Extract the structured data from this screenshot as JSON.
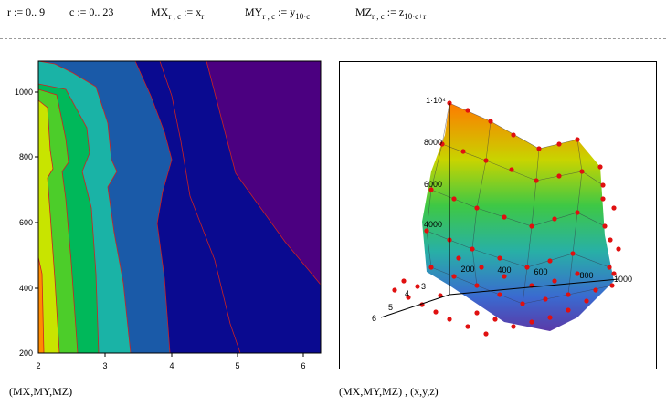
{
  "definitions": {
    "r_def": "r := 0.. 9",
    "c_def": "c := 0.. 23",
    "mx_lhs": "MX",
    "mx_sub": "r , c",
    "mx_rhs": " := x",
    "mx_rhs_sub": "r",
    "my_lhs": "MY",
    "my_sub": "r , c",
    "my_rhs": " := y",
    "my_rhs_sub": "10·c",
    "mz_lhs": "MZ",
    "mz_sub": "r , c",
    "mz_rhs": " := z",
    "mz_rhs_sub": "10·c+r"
  },
  "contour_plot": {
    "caption": "(MX,MY,MZ)",
    "x_ticks": [
      "2",
      "3",
      "4",
      "5",
      "6"
    ],
    "y_ticks": [
      "200",
      "400",
      "600",
      "800",
      "1000"
    ]
  },
  "surface_plot": {
    "caption": "(MX,MY,MZ) , (x,y,z)",
    "z_ticks": [
      "1·10⁴",
      "8000",
      "6000",
      "4000"
    ],
    "y_ticks": [
      "200",
      "400",
      "600",
      "800",
      "1000"
    ],
    "x_ticks": [
      "3",
      "4",
      "5",
      "6"
    ]
  },
  "chart_data": {
    "type": "contour",
    "xlim": [
      2,
      6.25
    ],
    "ylim": [
      200,
      1080
    ],
    "band_colors": [
      "#ff8c00",
      "#c8e400",
      "#4ccd2a",
      "#00b85a",
      "#1ab3a6",
      "#1a5aa8",
      "#0a0a90",
      "#4b0080"
    ],
    "boundary_color": "#cc2222"
  }
}
